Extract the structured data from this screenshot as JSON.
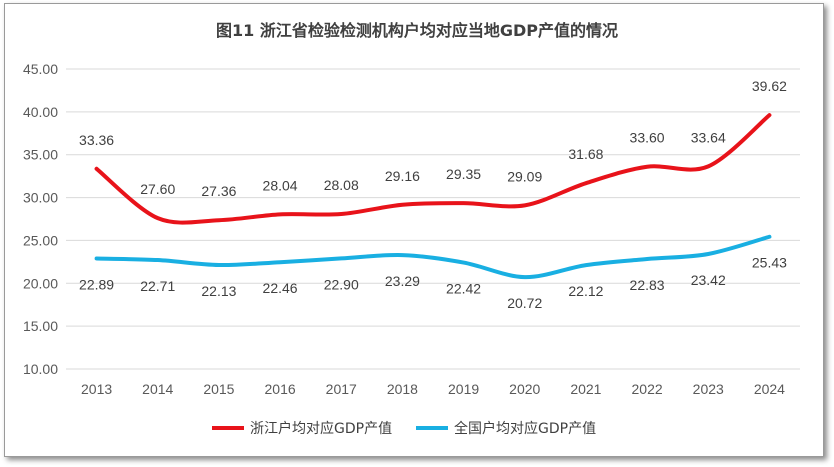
{
  "chart_data": {
    "type": "line",
    "title": "图11 浙江省检验检测机构户均对应当地GDP产值的情况",
    "categories": [
      "2013",
      "2014",
      "2015",
      "2016",
      "2017",
      "2018",
      "2019",
      "2020",
      "2021",
      "2022",
      "2023",
      "2024"
    ],
    "series": [
      {
        "name": "浙江户均对应GDP产值",
        "color": "#e8131a",
        "values": [
          33.36,
          27.6,
          27.36,
          28.04,
          28.08,
          29.16,
          29.35,
          29.09,
          31.68,
          33.6,
          33.64,
          39.62
        ],
        "labels": [
          "33.36",
          "27.60",
          "27.36",
          "28.04",
          "28.08",
          "29.16",
          "29.35",
          "29.09",
          "31.68",
          "33.60",
          "33.64",
          "39.62"
        ]
      },
      {
        "name": "全国户均对应GDP产值",
        "color": "#19afe2",
        "values": [
          22.89,
          22.71,
          22.13,
          22.46,
          22.9,
          23.29,
          22.42,
          20.72,
          22.12,
          22.83,
          23.42,
          25.43
        ],
        "labels": [
          "22.89",
          "22.71",
          "22.13",
          "22.46",
          "22.90",
          "23.29",
          "22.42",
          "20.72",
          "22.12",
          "22.83",
          "23.42",
          "25.43"
        ]
      }
    ],
    "ylim": [
      10,
      45
    ],
    "yticks": [
      "10.00",
      "15.00",
      "20.00",
      "25.00",
      "30.00",
      "35.00",
      "40.00",
      "45.00"
    ],
    "grid": true,
    "legend": "bottom"
  }
}
